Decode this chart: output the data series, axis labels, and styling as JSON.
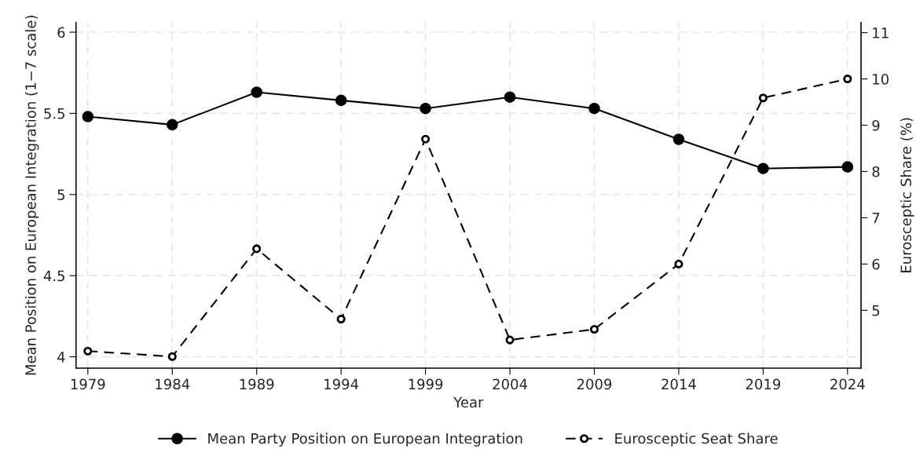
{
  "chart_data": {
    "type": "line",
    "xlabel": "Year",
    "ylabel": "Mean Position on European Integration (1−7 scale)",
    "y2label": "Eurosceptic Share (%)",
    "x": [
      1979,
      1984,
      1989,
      1994,
      1999,
      2004,
      2009,
      2014,
      2019,
      2024
    ],
    "series": [
      {
        "name": "Mean Party Position on European Integration",
        "color": "#000000",
        "values": [
          5.48,
          5.43,
          5.63,
          5.58,
          5.53,
          5.6,
          5.53,
          5.34,
          5.16,
          5.17
        ],
        "marker": "circle",
        "line_style": "solid"
      },
      {
        "name": "Eurosceptic Seat Share",
        "color": "#000000",
        "axis": "y2",
        "values": [
          4.12,
          4.0,
          6.33,
          4.81,
          8.7,
          4.36,
          4.59,
          6.0,
          9.59,
          10.0
        ],
        "marker": "circle",
        "line_style": "dashed"
      }
    ],
    "xlim": [
      1978.3,
      2024.8
    ],
    "xticks": [
      1979,
      1984,
      1989,
      1994,
      1999,
      2004,
      2009,
      2014,
      2019,
      2024
    ],
    "ylim": [
      3.93,
      6.06
    ],
    "yticks": [
      4,
      4.5,
      5,
      5.5,
      6
    ],
    "y2lim": [
      3.75,
      11.22
    ],
    "y2ticks": [
      5,
      6,
      7,
      8,
      9,
      10,
      11
    ],
    "grid": true,
    "legend": "bottom"
  }
}
